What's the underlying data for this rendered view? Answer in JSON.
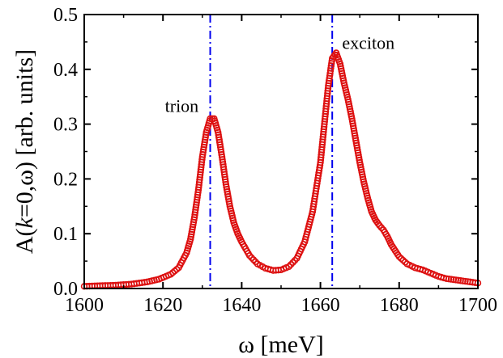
{
  "chart_data": {
    "type": "scatter",
    "xlabel": "ω [meV]",
    "ylabel_parts": [
      "A(",
      "k",
      "=0,ω) [arb. units]"
    ],
    "xlim": [
      1600,
      1700
    ],
    "ylim": [
      0.0,
      0.5
    ],
    "xticks": [
      1600,
      1620,
      1640,
      1660,
      1680,
      1700
    ],
    "yticks": [
      "0.0",
      "0.1",
      "0.2",
      "0.3",
      "0.4",
      "0.5"
    ],
    "marker_color": "#dd1111",
    "vline_color": "#0000ee",
    "vlines": [
      1632,
      1663
    ],
    "annotations": [
      {
        "text": "trion",
        "x": 1620.5,
        "y": 0.322
      },
      {
        "text": "exciton",
        "x": 1665.5,
        "y": 0.437
      }
    ],
    "series": [
      {
        "points": [
          [
            1600,
            0.004
          ],
          [
            1604,
            0.005
          ],
          [
            1608,
            0.006
          ],
          [
            1612,
            0.008
          ],
          [
            1616,
            0.012
          ],
          [
            1619,
            0.017
          ],
          [
            1622,
            0.026
          ],
          [
            1624,
            0.038
          ],
          [
            1626,
            0.065
          ],
          [
            1627,
            0.09
          ],
          [
            1628,
            0.13
          ],
          [
            1629,
            0.18
          ],
          [
            1630,
            0.24
          ],
          [
            1631,
            0.285
          ],
          [
            1632,
            0.31
          ],
          [
            1633,
            0.31
          ],
          [
            1634,
            0.285
          ],
          [
            1635,
            0.24
          ],
          [
            1636,
            0.19
          ],
          [
            1637,
            0.15
          ],
          [
            1638,
            0.12
          ],
          [
            1639,
            0.1
          ],
          [
            1640,
            0.085
          ],
          [
            1642,
            0.06
          ],
          [
            1644,
            0.045
          ],
          [
            1646,
            0.037
          ],
          [
            1648,
            0.033
          ],
          [
            1650,
            0.034
          ],
          [
            1652,
            0.04
          ],
          [
            1654,
            0.055
          ],
          [
            1656,
            0.085
          ],
          [
            1658,
            0.14
          ],
          [
            1660,
            0.23
          ],
          [
            1661,
            0.3
          ],
          [
            1662,
            0.37
          ],
          [
            1663,
            0.42
          ],
          [
            1664,
            0.43
          ],
          [
            1665,
            0.41
          ],
          [
            1666,
            0.375
          ],
          [
            1667,
            0.345
          ],
          [
            1668,
            0.31
          ],
          [
            1669,
            0.27
          ],
          [
            1670,
            0.23
          ],
          [
            1671,
            0.195
          ],
          [
            1672,
            0.165
          ],
          [
            1673,
            0.14
          ],
          [
            1674,
            0.125
          ],
          [
            1675,
            0.115
          ],
          [
            1676,
            0.107
          ],
          [
            1677,
            0.095
          ],
          [
            1678,
            0.08
          ],
          [
            1680,
            0.058
          ],
          [
            1682,
            0.045
          ],
          [
            1684,
            0.038
          ],
          [
            1686,
            0.034
          ],
          [
            1688,
            0.028
          ],
          [
            1690,
            0.022
          ],
          [
            1692,
            0.018
          ],
          [
            1695,
            0.015
          ],
          [
            1698,
            0.012
          ],
          [
            1700,
            0.01
          ]
        ]
      }
    ]
  }
}
